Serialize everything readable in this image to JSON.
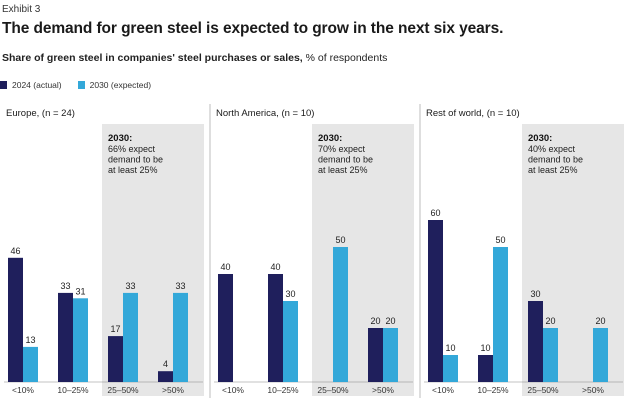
{
  "exhibit": "Exhibit 3",
  "title": "The demand for green steel is expected to grow in the next six years.",
  "subtitle_bold": "Share of green steel in companies' steel purchases or sales,",
  "subtitle_rest": "% of respondents",
  "colors": {
    "actual": "#1f1f5c",
    "expected": "#33a8d9",
    "highlight": "#e6e6e6",
    "divider": "#bdbdbd"
  },
  "chart_data": {
    "type": "bar",
    "categories": [
      "<10%",
      "10–25%",
      "25–50%",
      ">50%"
    ],
    "series_names": [
      "2024 (actual)",
      "2030 (expected)"
    ],
    "ylim": [
      0,
      70
    ],
    "panels": [
      {
        "title": "Europe, (n = 24)",
        "annotation": {
          "year": "2030:",
          "lines": [
            "66% expect",
            "demand to be",
            "at least 25%"
          ]
        },
        "actual": [
          46,
          33,
          17,
          4
        ],
        "expected": [
          13,
          31,
          33,
          33
        ]
      },
      {
        "title": "North America, (n = 10)",
        "annotation": {
          "year": "2030:",
          "lines": [
            "70% expect",
            "demand to be",
            "at least 25%"
          ]
        },
        "actual": [
          40,
          40,
          0,
          20
        ],
        "expected": [
          0,
          30,
          50,
          20
        ]
      },
      {
        "title": "Rest of world, (n = 10)",
        "annotation": {
          "year": "2030:",
          "lines": [
            "40% expect",
            "demand to be",
            "at least 25%"
          ]
        },
        "actual": [
          60,
          10,
          30,
          0
        ],
        "expected": [
          10,
          50,
          20,
          20
        ]
      }
    ]
  }
}
